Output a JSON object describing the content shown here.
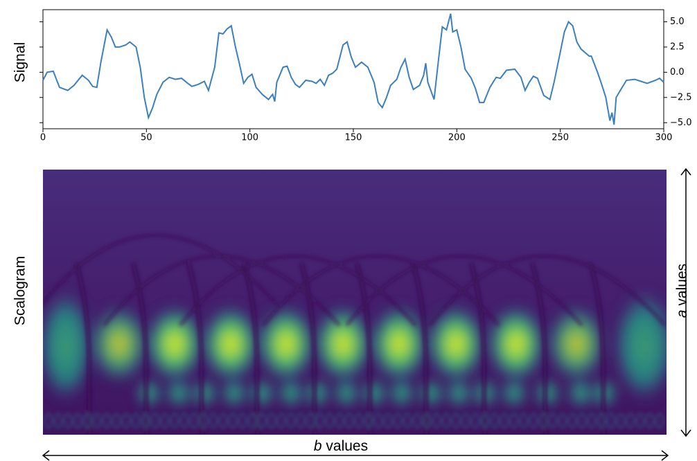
{
  "chart_data": {
    "type": "line",
    "y_label": "Signal",
    "color": "#3a7fbf",
    "x": [
      0,
      2,
      5,
      8,
      12,
      15,
      19,
      22,
      24,
      26,
      28,
      31,
      33,
      35,
      37,
      40,
      42,
      45,
      47,
      49,
      51,
      53,
      55,
      58,
      61,
      64,
      67,
      70,
      72,
      75,
      78,
      80,
      83,
      85,
      87,
      89,
      91,
      93,
      95,
      97,
      99,
      101,
      103,
      106,
      109,
      111,
      112,
      113,
      116,
      118,
      120,
      122,
      124,
      127,
      130,
      132,
      134,
      136,
      138,
      140,
      142,
      145,
      147,
      149,
      151,
      154,
      157,
      160,
      162,
      164,
      166,
      168,
      171,
      173,
      175,
      177,
      179,
      182,
      184,
      185,
      186,
      189,
      191,
      193,
      195,
      197,
      198,
      200,
      202,
      204,
      207,
      209,
      211,
      213,
      216,
      219,
      221,
      224,
      228,
      231,
      233,
      235,
      237,
      239,
      242,
      245,
      247,
      250,
      252,
      254,
      256,
      258,
      260,
      264,
      265,
      268,
      270,
      272,
      274,
      275,
      276,
      277,
      279,
      282,
      286,
      289,
      292,
      296,
      298,
      300
    ],
    "values": [
      -0.8,
      0.0,
      0.1,
      -1.5,
      -1.8,
      -1.3,
      -0.3,
      -0.8,
      -1.4,
      -1.5,
      1.0,
      4.2,
      3.5,
      2.5,
      2.5,
      2.7,
      3.0,
      2.5,
      0.5,
      -2.5,
      -4.5,
      -3.5,
      -2.2,
      -1.0,
      -0.5,
      -0.7,
      -0.6,
      -1.1,
      -1.4,
      -1.2,
      -0.9,
      -1.8,
      0.5,
      3.9,
      3.8,
      4.3,
      4.6,
      2.5,
      0.8,
      -1.1,
      -0.5,
      -0.2,
      -1.5,
      -2.2,
      -2.7,
      -2.2,
      -2.9,
      -1.0,
      0.5,
      0.6,
      -0.5,
      -1.2,
      -1.5,
      -0.8,
      -0.9,
      -1.1,
      -0.7,
      -1.3,
      -0.3,
      -0.1,
      0.3,
      2.7,
      3.0,
      1.5,
      0.5,
      1.0,
      0.5,
      -1.0,
      -3.0,
      -3.5,
      -2.5,
      -1.3,
      -0.7,
      0.5,
      1.3,
      -0.5,
      -1.7,
      -1.3,
      -0.3,
      0.9,
      -1.0,
      -2.7,
      1.0,
      4.5,
      4.2,
      5.8,
      4.0,
      4.2,
      2.5,
      0.3,
      -0.6,
      -1.6,
      -3.0,
      -3.0,
      -1.5,
      -0.5,
      -0.6,
      0.2,
      0.3,
      -0.5,
      -1.8,
      -1.0,
      -0.4,
      -0.6,
      -2.3,
      -2.7,
      -1.0,
      2.0,
      4.0,
      5.0,
      4.6,
      3.0,
      2.3,
      1.6,
      1.6,
      0.0,
      -1.2,
      -2.5,
      -4.8,
      -4.0,
      -5.2,
      -2.5,
      -1.8,
      -0.8,
      -0.7,
      -0.9,
      -1.1,
      -0.8,
      -0.6,
      -1.0
    ],
    "xlim": [
      0,
      300
    ],
    "xticks": [
      0,
      50,
      100,
      150,
      200,
      250,
      300
    ],
    "ylim": [
      -5.6,
      6.2
    ],
    "yticks": [
      {
        "value": 5,
        "label": "5.0"
      },
      2.5,
      {
        "value": 0,
        "label": "0.0"
      },
      {
        "value": -2.5,
        "label": "−2.5"
      },
      {
        "value": -5,
        "label": "−5.0"
      }
    ]
  },
  "scalogram": {
    "label": "Scalogram",
    "x_label": {
      "symbol": "b",
      "text": "values"
    },
    "y_label": {
      "symbol": "a",
      "text": "values"
    }
  }
}
